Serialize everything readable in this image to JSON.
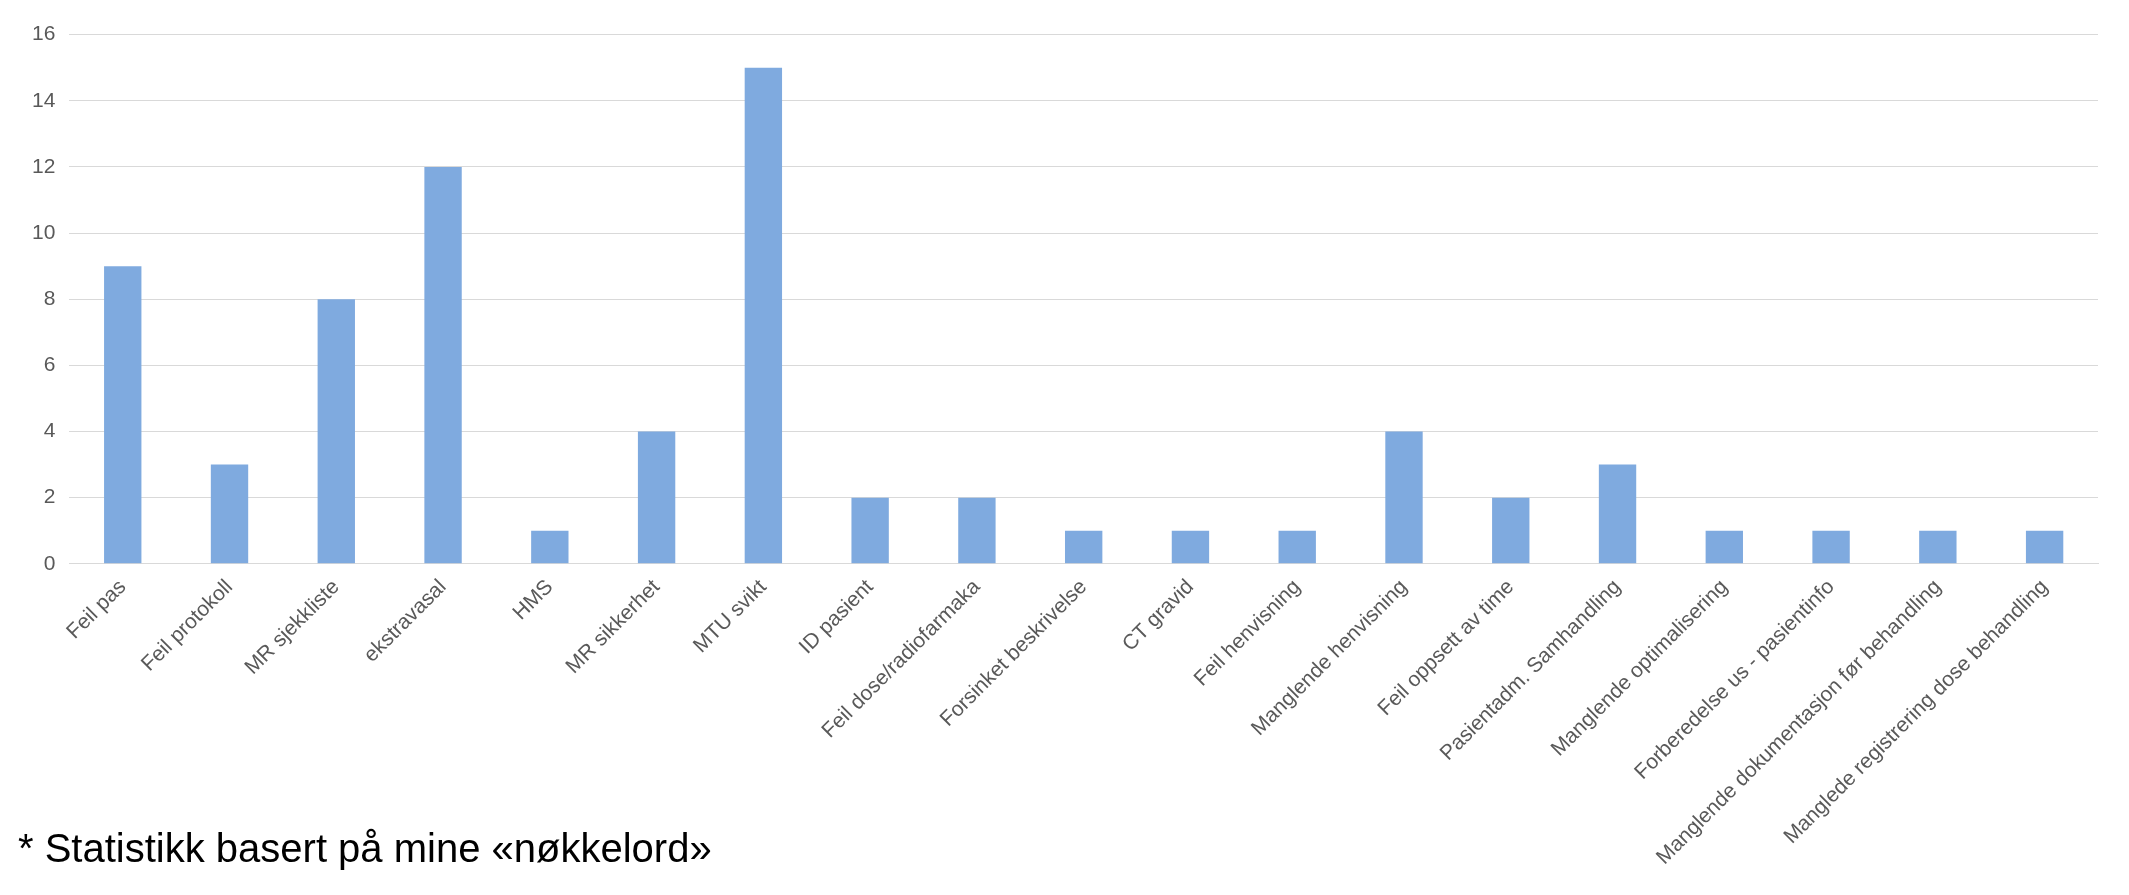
{
  "chart_data": {
    "type": "bar",
    "categories": [
      "Feil pas",
      "Feil protokoll",
      "MR sjekkliste",
      "ekstravasal",
      "HMS",
      "MR sikkerhet",
      "MTU svikt",
      "ID pasient",
      "Feil dose/radiofarmaka",
      "Forsinket beskrivelse",
      "CT gravid",
      "Feil henvisning",
      "Manglende henvisning",
      "Feil oppsett av time",
      "Pasientadm. Samhandling",
      "Manglende optimalisering",
      "Forberedelse us - pasientinfo",
      "Manglende dokumentasjon før behandling",
      "Manglede registrering dose behandling"
    ],
    "values": [
      9,
      3,
      8,
      12,
      1,
      4,
      15,
      2,
      2,
      1,
      1,
      1,
      4,
      2,
      3,
      1,
      1,
      1,
      1
    ],
    "color": "#7faadf",
    "ylim": [
      0,
      16
    ],
    "yticks": [
      0,
      2,
      4,
      6,
      8,
      10,
      12,
      14,
      16
    ],
    "grid": "y",
    "legend": false,
    "annotations": [
      "* Statistikk basert på mine «nøkkelord»"
    ]
  }
}
